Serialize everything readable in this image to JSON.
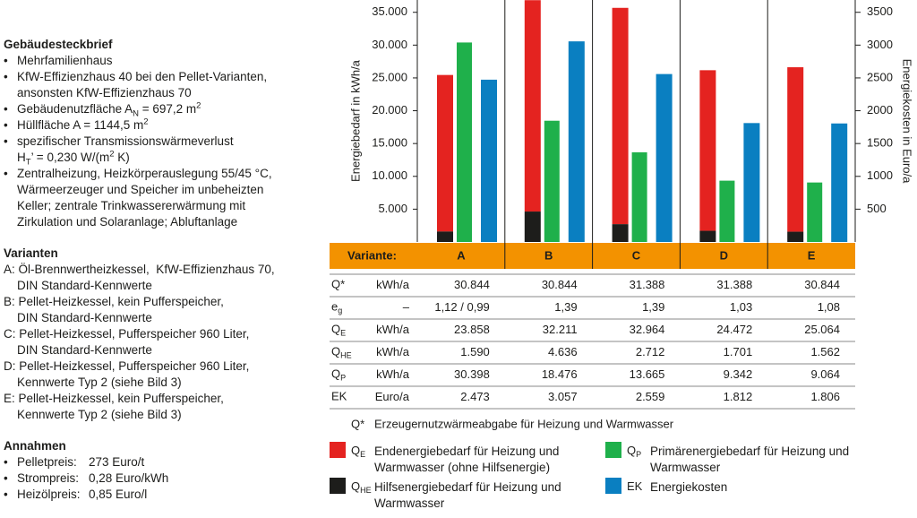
{
  "sidebar": [
    {
      "title": "Gebäudesteckbrief",
      "bullets": true,
      "items": [
        {
          "lines": [
            "Mehrfamilienhaus"
          ]
        },
        {
          "lines": [
            "KfW-Effizienzhaus 40 bei den Pellet-Varianten,",
            "ansonsten KfW-Effizienzhaus 70"
          ]
        },
        {
          "lines": [
            [
              "Gebäudenutzfläche A",
              {
                "sub": "N"
              },
              " = 697,2 m",
              {
                "sup": "2"
              }
            ]
          ]
        },
        {
          "lines": [
            [
              "Hüllfläche A = 1144,5 m",
              {
                "sup": "2"
              }
            ]
          ]
        },
        {
          "lines": [
            "spezifischer Transmissionswärmeverlust",
            [
              "H",
              {
                "sub": "T"
              },
              "’ = 0,230 W/(m",
              {
                "sup": "2"
              },
              " K)"
            ]
          ]
        },
        {
          "lines": [
            "Zentralheizung, Heizkörperauslegung 55/45 °C,",
            "Wärmeerzeuger und Speicher im unbeheizten",
            "Keller; zentrale Trinkwassererwärmung mit",
            "Zirkulation und Solaranlage; Abluftanlage"
          ]
        }
      ]
    },
    {
      "title": "Varianten",
      "bullets": false,
      "items": [
        {
          "lines": [
            "A: Öl-Brennwertheizkessel,  KfW-Effizienzhaus 70,",
            "DIN Standard-Kennwerte"
          ]
        },
        {
          "lines": [
            "B: Pellet-Heizkessel, kein Pufferspeicher,",
            "DIN Standard-Kennwerte"
          ]
        },
        {
          "lines": [
            "C: Pellet-Heizkessel, Pufferspeicher 960 Liter,",
            "DIN Standard-Kennwerte"
          ]
        },
        {
          "lines": [
            "D: Pellet-Heizkessel, Pufferspeicher 960 Liter,",
            "Kennwerte Typ 2 (siehe Bild 3)"
          ]
        },
        {
          "lines": [
            "E: Pellet-Heizkessel, kein Pufferspeicher,",
            "Kennwerte Typ 2 (siehe Bild 3)"
          ]
        }
      ]
    },
    {
      "title": "Annahmen",
      "bullets": true,
      "items": [
        {
          "label": "Pelletpreis:",
          "value": "273 Euro/t"
        },
        {
          "label": "Strompreis:",
          "value": "0,28 Euro/kWh"
        },
        {
          "label": "Heizölpreis:",
          "value": "0,85 Euro/l"
        }
      ]
    }
  ],
  "chart_data": {
    "type": "bar",
    "categories": [
      "A",
      "B",
      "C",
      "D",
      "E"
    ],
    "ylabel": "Energiebedarf in kWh/a",
    "y2label": "Energiekosten in Euro/a",
    "ylim": [
      0,
      36600
    ],
    "yticks": [
      {
        "value": 5000,
        "label": "5.000"
      },
      {
        "value": 10000,
        "label": "10.000"
      },
      {
        "value": 15000,
        "label": "15.000"
      },
      {
        "value": 20000,
        "label": "20.000"
      },
      {
        "value": 25000,
        "label": "25.000"
      },
      {
        "value": 30000,
        "label": "30.000"
      },
      {
        "value": 35000,
        "label": "35.000"
      }
    ],
    "y2lim": [
      0,
      3660
    ],
    "y2ticks": [
      500,
      1000,
      1500,
      2000,
      2500,
      3000,
      3500
    ],
    "series": [
      {
        "symbol": "Q",
        "symbol_sub": "E",
        "name": "Endenergiebedarf für Heizung und Warmwasser (ohne Hilfsenergie)",
        "unit": "kWh/a",
        "color": "#e42320",
        "values": [
          23858,
          32211,
          32964,
          24472,
          25064
        ],
        "value_labels": [
          "23.858",
          "32.211",
          "32.964",
          "24.472",
          "25.064"
        ]
      },
      {
        "symbol": "Q",
        "symbol_sub": "HE",
        "name": "Hilfsenergiebedarf für Heizung und Warmwasser",
        "unit": "kWh/a",
        "color": "#1d1d1b",
        "values": [
          1590,
          4636,
          2712,
          1701,
          1562
        ],
        "value_labels": [
          "1.590",
          "4.636",
          "2.712",
          "1.701",
          "1.562"
        ]
      },
      {
        "symbol": "Q",
        "symbol_sub": "P",
        "name": "Primärenergiebedarf für Heizung und Warmwasser",
        "unit": "kWh/a",
        "color": "#1fb04b",
        "values": [
          30398,
          18476,
          13665,
          9342,
          9064
        ],
        "value_labels": [
          "30.398",
          "18.476",
          "13.665",
          "9.342",
          "9.064"
        ]
      },
      {
        "symbol": "EK",
        "name": "Energiekosten",
        "unit": "Euro/a",
        "color": "#0a7fc1",
        "axis": "y2",
        "values": [
          2473,
          3057,
          2559,
          1812,
          1806
        ],
        "value_labels": [
          "2.473",
          "3.057",
          "2.559",
          "1.812",
          "1.806"
        ]
      }
    ]
  },
  "table": {
    "header": "Variante:",
    "rows": [
      {
        "label": "Q*",
        "unit": "kWh/a",
        "cells": [
          "30.844",
          "30.844",
          "31.388",
          "31.388",
          "30.844"
        ]
      },
      {
        "label": "e",
        "label_sub": "g",
        "unit": "–",
        "cells": [
          "1,12 / 0,99",
          "1,39",
          "1,39",
          "1,03",
          "1,08"
        ]
      }
    ],
    "footnote": "Erzeugernutzwärmeabgabe für Heizung und Warmwasser"
  }
}
